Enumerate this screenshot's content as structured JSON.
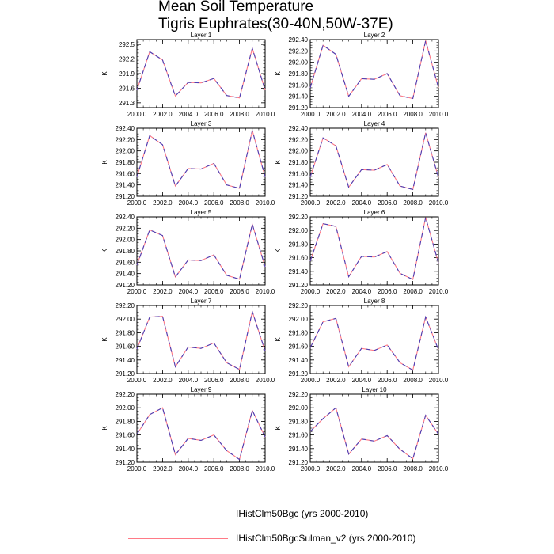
{
  "title": "Mean Soil Temperature",
  "subtitle": "Tigris Euphrates(30-40N,50W-37E)",
  "legend": [
    {
      "label": "IHistClm50Bgc (yrs 2000-2010)",
      "color": "#4b3fb5",
      "style": "dashed"
    },
    {
      "label": "IHistClm50BgcSulman_v2 (yrs 2000-2010)",
      "color": "#ff7a86",
      "style": "solid"
    }
  ],
  "chart_data": [
    {
      "type": "line",
      "title": "Layer 1",
      "ylabel": "K",
      "xlim": [
        2000,
        2010
      ],
      "ylim": [
        291.2,
        292.6
      ],
      "x_ticks": [
        "2000.0",
        "2002.0",
        "2004.0",
        "2006.0",
        "2008.0",
        "2010.0"
      ],
      "y_ticks": [
        {
          "value": 291.3,
          "label": "291.3"
        },
        {
          "value": 291.6,
          "label": "291.6"
        },
        {
          "value": 291.9,
          "label": "291.9"
        },
        {
          "value": 292.2,
          "label": "292.2"
        },
        {
          "value": 292.5,
          "label": "292.5"
        }
      ],
      "x": [
        2000,
        2001,
        2002,
        2003,
        2004,
        2005,
        2006,
        2007,
        2008,
        2009,
        2010
      ],
      "series": [
        {
          "values": [
            291.56,
            292.35,
            292.18,
            291.44,
            291.72,
            291.71,
            291.8,
            291.45,
            291.4,
            292.42,
            291.56
          ]
        },
        {
          "values": [
            291.56,
            292.35,
            292.18,
            291.44,
            291.72,
            291.71,
            291.8,
            291.45,
            291.4,
            292.42,
            291.56
          ]
        }
      ]
    },
    {
      "type": "line",
      "title": "Layer 2",
      "ylabel": "K",
      "xlim": [
        2000,
        2010
      ],
      "ylim": [
        291.2,
        292.4
      ],
      "x_ticks": [
        "2000.0",
        "2002.0",
        "2004.0",
        "2006.0",
        "2008.0",
        "2010.0"
      ],
      "y_ticks": [
        {
          "value": 291.2,
          "label": "291.20"
        },
        {
          "value": 291.4,
          "label": "291.40"
        },
        {
          "value": 291.6,
          "label": "291.60"
        },
        {
          "value": 291.8,
          "label": "291.80"
        },
        {
          "value": 292.0,
          "label": "292.00"
        },
        {
          "value": 292.2,
          "label": "292.20"
        },
        {
          "value": 292.4,
          "label": "292.40"
        }
      ],
      "x": [
        2000,
        2001,
        2002,
        2003,
        2004,
        2005,
        2006,
        2007,
        2008,
        2009,
        2010
      ],
      "series": [
        {
          "values": [
            291.55,
            292.3,
            292.14,
            291.4,
            291.71,
            291.7,
            291.8,
            291.41,
            291.36,
            292.38,
            291.55
          ]
        },
        {
          "values": [
            291.55,
            292.3,
            292.14,
            291.4,
            291.71,
            291.7,
            291.8,
            291.41,
            291.36,
            292.38,
            291.55
          ]
        }
      ]
    },
    {
      "type": "line",
      "title": "Layer 3",
      "ylabel": "K",
      "xlim": [
        2000,
        2010
      ],
      "ylim": [
        291.2,
        292.4
      ],
      "x_ticks": [
        "2000.0",
        "2002.0",
        "2004.0",
        "2006.0",
        "2008.0",
        "2010.0"
      ],
      "y_ticks": [
        {
          "value": 291.2,
          "label": "291.20"
        },
        {
          "value": 291.4,
          "label": "291.40"
        },
        {
          "value": 291.6,
          "label": "291.60"
        },
        {
          "value": 291.8,
          "label": "291.80"
        },
        {
          "value": 292.0,
          "label": "292.00"
        },
        {
          "value": 292.2,
          "label": "292.20"
        },
        {
          "value": 292.4,
          "label": "292.40"
        }
      ],
      "x": [
        2000,
        2001,
        2002,
        2003,
        2004,
        2005,
        2006,
        2007,
        2008,
        2009,
        2010
      ],
      "series": [
        {
          "values": [
            291.54,
            292.27,
            292.11,
            291.38,
            291.69,
            291.68,
            291.78,
            291.4,
            291.34,
            292.36,
            291.54
          ]
        },
        {
          "values": [
            291.54,
            292.27,
            292.11,
            291.38,
            291.69,
            291.68,
            291.78,
            291.4,
            291.34,
            292.36,
            291.54
          ]
        }
      ]
    },
    {
      "type": "line",
      "title": "Layer 4",
      "ylabel": "K",
      "xlim": [
        2000,
        2010
      ],
      "ylim": [
        291.2,
        292.4
      ],
      "x_ticks": [
        "2000.0",
        "2002.0",
        "2004.0",
        "2006.0",
        "2008.0",
        "2010.0"
      ],
      "y_ticks": [
        {
          "value": 291.2,
          "label": "291.20"
        },
        {
          "value": 291.4,
          "label": "291.40"
        },
        {
          "value": 291.6,
          "label": "291.60"
        },
        {
          "value": 291.8,
          "label": "291.80"
        },
        {
          "value": 292.0,
          "label": "292.00"
        },
        {
          "value": 292.2,
          "label": "292.20"
        },
        {
          "value": 292.4,
          "label": "292.40"
        }
      ],
      "x": [
        2000,
        2001,
        2002,
        2003,
        2004,
        2005,
        2006,
        2007,
        2008,
        2009,
        2010
      ],
      "series": [
        {
          "values": [
            291.54,
            292.23,
            292.09,
            291.36,
            291.67,
            291.66,
            291.76,
            291.38,
            291.32,
            292.32,
            291.53
          ]
        },
        {
          "values": [
            291.54,
            292.23,
            292.09,
            291.36,
            291.67,
            291.66,
            291.76,
            291.38,
            291.32,
            292.32,
            291.53
          ]
        }
      ]
    },
    {
      "type": "line",
      "title": "Layer 5",
      "ylabel": "K",
      "xlim": [
        2000,
        2010
      ],
      "ylim": [
        291.2,
        292.4
      ],
      "x_ticks": [
        "2000.0",
        "2002.0",
        "2004.0",
        "2006.0",
        "2008.0",
        "2010.0"
      ],
      "y_ticks": [
        {
          "value": 291.2,
          "label": "291.20"
        },
        {
          "value": 291.4,
          "label": "291.40"
        },
        {
          "value": 291.6,
          "label": "291.60"
        },
        {
          "value": 291.8,
          "label": "291.80"
        },
        {
          "value": 292.0,
          "label": "292.00"
        },
        {
          "value": 292.2,
          "label": "292.20"
        },
        {
          "value": 292.4,
          "label": "292.40"
        }
      ],
      "x": [
        2000,
        2001,
        2002,
        2003,
        2004,
        2005,
        2006,
        2007,
        2008,
        2009,
        2010
      ],
      "series": [
        {
          "values": [
            291.55,
            292.17,
            292.07,
            291.34,
            291.64,
            291.63,
            291.73,
            291.37,
            291.3,
            292.27,
            291.52
          ]
        },
        {
          "values": [
            291.55,
            292.17,
            292.07,
            291.34,
            291.64,
            291.63,
            291.73,
            291.37,
            291.3,
            292.27,
            291.52
          ]
        }
      ]
    },
    {
      "type": "line",
      "title": "Layer 6",
      "ylabel": "K",
      "xlim": [
        2000,
        2010
      ],
      "ylim": [
        291.2,
        292.2
      ],
      "x_ticks": [
        "2000.0",
        "2002.0",
        "2004.0",
        "2006.0",
        "2008.0",
        "2010.0"
      ],
      "y_ticks": [
        {
          "value": 291.2,
          "label": "291.20"
        },
        {
          "value": 291.4,
          "label": "291.40"
        },
        {
          "value": 291.6,
          "label": "291.60"
        },
        {
          "value": 291.8,
          "label": "291.80"
        },
        {
          "value": 292.0,
          "label": "292.00"
        },
        {
          "value": 292.2,
          "label": "292.20"
        }
      ],
      "x": [
        2000,
        2001,
        2002,
        2003,
        2004,
        2005,
        2006,
        2007,
        2008,
        2009,
        2010
      ],
      "series": [
        {
          "values": [
            291.55,
            292.1,
            292.06,
            291.32,
            291.62,
            291.61,
            291.69,
            291.37,
            291.28,
            292.19,
            291.52
          ]
        },
        {
          "values": [
            291.55,
            292.1,
            292.06,
            291.32,
            291.62,
            291.61,
            291.69,
            291.37,
            291.28,
            292.19,
            291.52
          ]
        }
      ]
    },
    {
      "type": "line",
      "title": "Layer 7",
      "ylabel": "K",
      "xlim": [
        2000,
        2010
      ],
      "ylim": [
        291.2,
        292.2
      ],
      "x_ticks": [
        "2000.0",
        "2002.0",
        "2004.0",
        "2006.0",
        "2008.0",
        "2010.0"
      ],
      "y_ticks": [
        {
          "value": 291.2,
          "label": "291.20"
        },
        {
          "value": 291.4,
          "label": "291.40"
        },
        {
          "value": 291.6,
          "label": "291.60"
        },
        {
          "value": 291.8,
          "label": "291.80"
        },
        {
          "value": 292.0,
          "label": "292.00"
        },
        {
          "value": 292.2,
          "label": "292.20"
        }
      ],
      "x": [
        2000,
        2001,
        2002,
        2003,
        2004,
        2005,
        2006,
        2007,
        2008,
        2009,
        2010
      ],
      "series": [
        {
          "values": [
            291.56,
            292.03,
            292.04,
            291.3,
            291.59,
            291.57,
            291.65,
            291.36,
            291.26,
            292.11,
            291.53
          ]
        },
        {
          "values": [
            291.56,
            292.03,
            292.04,
            291.3,
            291.59,
            291.57,
            291.65,
            291.36,
            291.26,
            292.11,
            291.53
          ]
        }
      ]
    },
    {
      "type": "line",
      "title": "Layer 8",
      "ylabel": "K",
      "xlim": [
        2000,
        2010
      ],
      "ylim": [
        291.2,
        292.2
      ],
      "x_ticks": [
        "2000.0",
        "2002.0",
        "2004.0",
        "2006.0",
        "2008.0",
        "2010.0"
      ],
      "y_ticks": [
        {
          "value": 291.2,
          "label": "291.20"
        },
        {
          "value": 291.4,
          "label": "291.40"
        },
        {
          "value": 291.6,
          "label": "291.60"
        },
        {
          "value": 291.8,
          "label": "291.80"
        },
        {
          "value": 292.0,
          "label": "292.00"
        },
        {
          "value": 292.2,
          "label": "292.20"
        }
      ],
      "x": [
        2000,
        2001,
        2002,
        2003,
        2004,
        2005,
        2006,
        2007,
        2008,
        2009,
        2010
      ],
      "series": [
        {
          "values": [
            291.58,
            291.96,
            292.01,
            291.3,
            291.57,
            291.54,
            291.62,
            291.36,
            291.25,
            292.03,
            291.55
          ]
        },
        {
          "values": [
            291.58,
            291.96,
            292.01,
            291.3,
            291.57,
            291.54,
            291.62,
            291.36,
            291.25,
            292.03,
            291.55
          ]
        }
      ]
    },
    {
      "type": "line",
      "title": "Layer 9",
      "ylabel": "K",
      "xlim": [
        2000,
        2010
      ],
      "ylim": [
        291.2,
        292.2
      ],
      "x_ticks": [
        "2000.0",
        "2002.0",
        "2004.0",
        "2006.0",
        "2008.0",
        "2010.0"
      ],
      "y_ticks": [
        {
          "value": 291.2,
          "label": "291.20"
        },
        {
          "value": 291.4,
          "label": "291.40"
        },
        {
          "value": 291.6,
          "label": "291.60"
        },
        {
          "value": 291.8,
          "label": "291.80"
        },
        {
          "value": 292.0,
          "label": "292.00"
        },
        {
          "value": 292.2,
          "label": "292.20"
        }
      ],
      "x": [
        2000,
        2001,
        2002,
        2003,
        2004,
        2005,
        2006,
        2007,
        2008,
        2009,
        2010
      ],
      "series": [
        {
          "values": [
            291.61,
            291.9,
            292.0,
            291.31,
            291.55,
            291.52,
            291.6,
            291.37,
            291.24,
            291.96,
            291.57
          ]
        },
        {
          "values": [
            291.61,
            291.9,
            292.0,
            291.31,
            291.55,
            291.52,
            291.6,
            291.37,
            291.24,
            291.96,
            291.57
          ]
        }
      ]
    },
    {
      "type": "line",
      "title": "Layer 10",
      "ylabel": "K",
      "xlim": [
        2000,
        2010
      ],
      "ylim": [
        291.2,
        292.2
      ],
      "x_ticks": [
        "2000.0",
        "2002.0",
        "2004.0",
        "2006.0",
        "2008.0",
        "2010.0"
      ],
      "y_ticks": [
        {
          "value": 291.2,
          "label": "291.20"
        },
        {
          "value": 291.4,
          "label": "291.40"
        },
        {
          "value": 291.6,
          "label": "291.60"
        },
        {
          "value": 291.8,
          "label": "291.80"
        },
        {
          "value": 292.0,
          "label": "292.00"
        },
        {
          "value": 292.2,
          "label": "292.20"
        }
      ],
      "x": [
        2000,
        2001,
        2002,
        2003,
        2004,
        2005,
        2006,
        2007,
        2008,
        2009,
        2010
      ],
      "series": [
        {
          "values": [
            291.65,
            291.84,
            292.0,
            291.32,
            291.54,
            291.51,
            291.59,
            291.39,
            291.25,
            291.89,
            291.61
          ]
        },
        {
          "values": [
            291.65,
            291.84,
            292.0,
            291.32,
            291.54,
            291.51,
            291.59,
            291.39,
            291.25,
            291.89,
            291.61
          ]
        }
      ]
    }
  ]
}
